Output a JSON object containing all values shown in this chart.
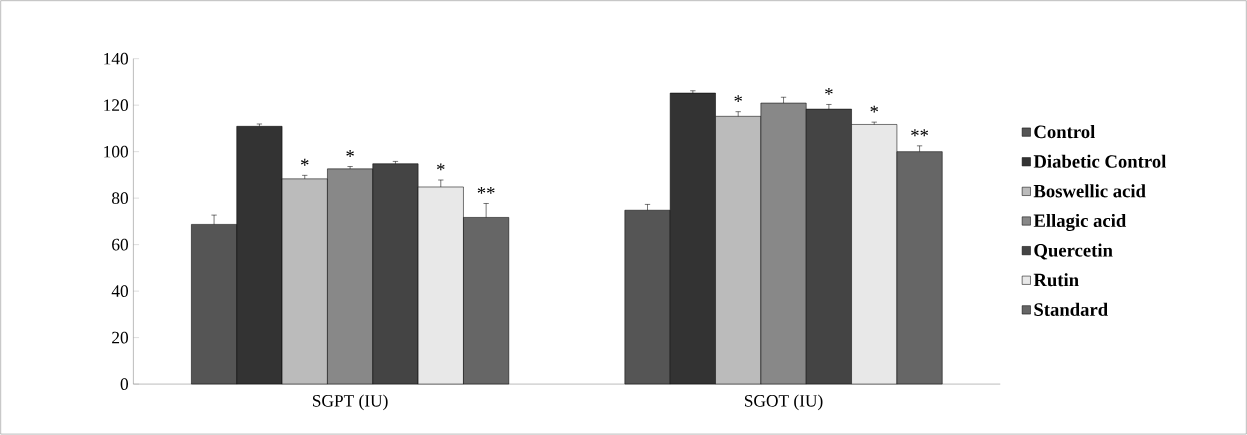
{
  "chart_data": {
    "type": "bar",
    "categories": [
      "SGPT (IU)",
      "SGOT (IU)"
    ],
    "series": [
      {
        "name": "Control",
        "color": "#555555",
        "values": [
          68.7,
          74.8
        ],
        "errors": [
          4,
          2.5
        ]
      },
      {
        "name": "Diabetic Control",
        "color": "#333333",
        "values": [
          110.9,
          125.2
        ],
        "errors": [
          1,
          1
        ]
      },
      {
        "name": "Boswellic acid",
        "color": "#bbbbbb",
        "values": [
          88.3,
          115.2
        ],
        "errors": [
          1.5,
          2
        ]
      },
      {
        "name": "Ellagic acid",
        "color": "#888888",
        "values": [
          92.6,
          120.9
        ],
        "errors": [
          1,
          2.5
        ]
      },
      {
        "name": "Quercetin",
        "color": "#444444",
        "values": [
          94.8,
          118.3
        ],
        "errors": [
          1,
          2
        ]
      },
      {
        "name": "Rutin",
        "color": "#e8e8e8",
        "values": [
          84.8,
          111.7
        ],
        "errors": [
          3,
          1
        ]
      },
      {
        "name": "Standard",
        "color": "#666666",
        "values": [
          71.7,
          100
        ],
        "errors": [
          6,
          2.5
        ]
      }
    ],
    "ylim": [
      0,
      140
    ],
    "yticks": [
      0,
      20,
      40,
      60,
      80,
      100,
      120,
      140
    ],
    "grid": false,
    "legend": "right",
    "annotations": [
      "*",
      "*",
      "*",
      "**",
      "*",
      "*",
      "*",
      "**"
    ]
  }
}
